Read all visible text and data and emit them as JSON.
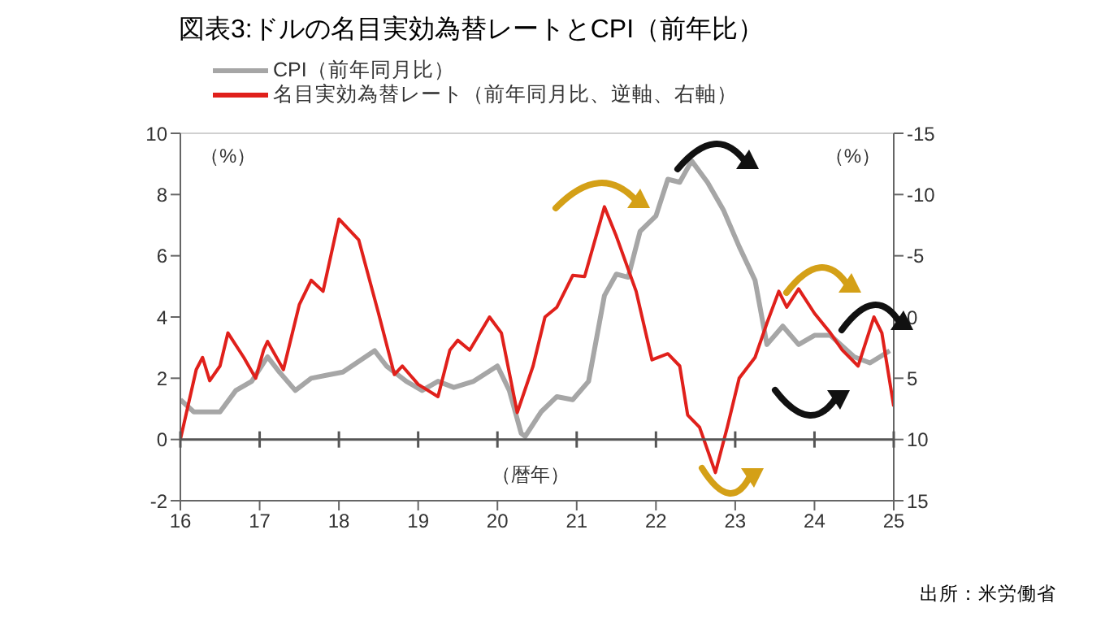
{
  "chart_data": {
    "type": "line",
    "title": "図表3:ドルの名目実効為替レートとCPI（前年比）",
    "ylabel": "（%）",
    "y2label": "（%）",
    "xlabel": "（暦年）",
    "annotations": [
      "出所：米労働省"
    ],
    "xlim": [
      2016,
      2025
    ],
    "xticks": [
      {
        "value": 2016,
        "label": "16"
      },
      {
        "value": 2017,
        "label": "17"
      },
      {
        "value": 2018,
        "label": "18"
      },
      {
        "value": 2019,
        "label": "19"
      },
      {
        "value": 2020,
        "label": "20"
      },
      {
        "value": 2021,
        "label": "21"
      },
      {
        "value": 2022,
        "label": "22"
      },
      {
        "value": 2023,
        "label": "23"
      },
      {
        "value": 2024,
        "label": "24"
      },
      {
        "value": 2025,
        "label": "25"
      }
    ],
    "ylim": [
      -2,
      10
    ],
    "yticks": [
      -2,
      0,
      2,
      4,
      6,
      8,
      10
    ],
    "y2lim": [
      15,
      -15
    ],
    "y2ticks": [
      -15,
      -10,
      -5,
      0,
      5,
      10,
      15
    ],
    "grid": "y",
    "legend": "top left",
    "line_style": "solid",
    "series": [
      {
        "name": "CPI（前年同月比）",
        "color": "#a6a6a6",
        "x": [
          2016.0,
          2016.17,
          2016.5,
          2016.7,
          2016.9,
          2017.1,
          2017.25,
          2017.45,
          2017.65,
          2017.85,
          2018.05,
          2018.45,
          2018.6,
          2018.85,
          2019.05,
          2019.25,
          2019.45,
          2019.7,
          2020.0,
          2020.15,
          2020.3,
          2020.35,
          2020.55,
          2020.75,
          2020.95,
          2021.15,
          2021.35,
          2021.5,
          2021.65,
          2021.8,
          2022.0,
          2022.15,
          2022.3,
          2022.45,
          2022.65,
          2022.85,
          2023.05,
          2023.25,
          2023.4,
          2023.6,
          2023.8,
          2024.0,
          2024.2,
          2024.5,
          2024.7,
          2024.95
        ],
        "values": [
          1.3,
          0.9,
          0.9,
          1.6,
          1.9,
          2.7,
          2.2,
          1.6,
          2.0,
          2.1,
          2.2,
          2.9,
          2.4,
          1.9,
          1.6,
          1.9,
          1.7,
          1.9,
          2.4,
          1.6,
          0.2,
          0.1,
          0.9,
          1.4,
          1.3,
          1.9,
          4.7,
          5.4,
          5.3,
          6.8,
          7.3,
          8.5,
          8.4,
          9.1,
          8.4,
          7.5,
          6.3,
          5.2,
          3.1,
          3.7,
          3.1,
          3.4,
          3.4,
          2.7,
          2.5,
          2.9
        ]
      },
      {
        "name": "名目実効為替レート（前年同月比、逆軸、右軸）",
        "color": "#e0201b",
        "axis": "y2",
        "x": [
          2016.0,
          2016.2,
          2016.28,
          2016.37,
          2016.5,
          2016.6,
          2016.8,
          2016.95,
          2017.05,
          2017.1,
          2017.3,
          2017.5,
          2017.65,
          2017.8,
          2018.0,
          2018.25,
          2018.5,
          2018.7,
          2018.8,
          2019.0,
          2019.25,
          2019.4,
          2019.5,
          2019.65,
          2019.9,
          2020.05,
          2020.25,
          2020.45,
          2020.6,
          2020.75,
          2020.95,
          2021.1,
          2021.35,
          2021.5,
          2021.75,
          2021.95,
          2022.15,
          2022.3,
          2022.4,
          2022.55,
          2022.75,
          2022.9,
          2023.05,
          2023.25,
          2023.4,
          2023.55,
          2023.65,
          2023.8,
          2024.0,
          2024.2,
          2024.35,
          2024.55,
          2024.75,
          2024.85,
          2025.0
        ],
        "values": [
          10,
          4.3,
          3.3,
          5.2,
          4.0,
          1.3,
          3.3,
          5.0,
          2.7,
          2.0,
          4.3,
          -1.0,
          -3.0,
          -2.1,
          -8.0,
          -6.3,
          -0.3,
          4.7,
          4.0,
          5.5,
          6.5,
          2.7,
          1.9,
          2.7,
          0,
          1.3,
          7.8,
          4.0,
          0,
          -0.8,
          -3.4,
          -3.3,
          -9.0,
          -6.6,
          -2.1,
          3.5,
          3.0,
          4.0,
          8.0,
          9.0,
          12.7,
          9.0,
          5.0,
          3.3,
          0.5,
          -2.1,
          -0.8,
          -2.3,
          -0.3,
          1.3,
          2.7,
          4.0,
          0,
          1.3,
          7.3
        ]
      }
    ]
  }
}
